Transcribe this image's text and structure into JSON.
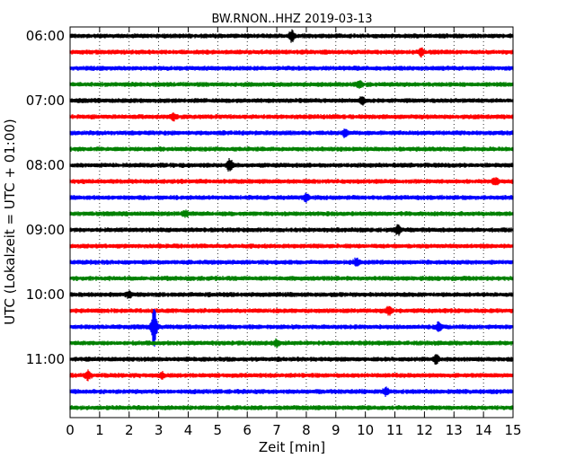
{
  "chart_data": {
    "type": "line",
    "title": "BW.RNON..HHZ 2019-03-13",
    "xlabel": "Zeit  [min]",
    "ylabel": "UTC (Lokalzeit = UTC + 01:00)",
    "xlim": [
      0,
      15
    ],
    "x_ticks": [
      "0",
      "1",
      "2",
      "3",
      "4",
      "5",
      "6",
      "7",
      "8",
      "9",
      "10",
      "11",
      "12",
      "13",
      "14",
      "15"
    ],
    "y_tick_labels": [
      "06:00",
      "07:00",
      "08:00",
      "09:00",
      "10:00",
      "11:00"
    ],
    "grid": "vertical-dotted",
    "trace_colors": [
      "#000000",
      "#ff0000",
      "#0000ff",
      "#008000"
    ],
    "traces": [
      {
        "start": "06:00",
        "events": [
          {
            "t": 7.5,
            "amp": 1.6
          }
        ]
      },
      {
        "start": "06:15",
        "events": [
          {
            "t": 11.9,
            "amp": 1.2
          }
        ]
      },
      {
        "start": "06:30",
        "events": []
      },
      {
        "start": "06:45",
        "events": [
          {
            "t": 9.8,
            "amp": 1.2
          }
        ]
      },
      {
        "start": "07:00",
        "events": [
          {
            "t": 9.9,
            "amp": 1.3
          }
        ]
      },
      {
        "start": "07:15",
        "events": [
          {
            "t": 3.5,
            "amp": 1.2
          }
        ]
      },
      {
        "start": "07:30",
        "events": [
          {
            "t": 9.3,
            "amp": 1.3
          }
        ]
      },
      {
        "start": "07:45",
        "events": []
      },
      {
        "start": "08:00",
        "events": [
          {
            "t": 5.4,
            "amp": 1.9
          }
        ]
      },
      {
        "start": "08:15",
        "events": [
          {
            "t": 14.4,
            "amp": 1.2
          }
        ]
      },
      {
        "start": "08:30",
        "events": [
          {
            "t": 8.0,
            "amp": 1.2
          }
        ]
      },
      {
        "start": "08:45",
        "events": [
          {
            "t": 3.9,
            "amp": 1.1
          }
        ]
      },
      {
        "start": "09:00",
        "events": [
          {
            "t": 11.1,
            "amp": 1.5
          }
        ]
      },
      {
        "start": "09:15",
        "events": []
      },
      {
        "start": "09:30",
        "events": [
          {
            "t": 9.7,
            "amp": 1.2
          }
        ]
      },
      {
        "start": "09:45",
        "events": []
      },
      {
        "start": "10:00",
        "events": [
          {
            "t": 2.0,
            "amp": 1.1
          }
        ]
      },
      {
        "start": "10:15",
        "events": [
          {
            "t": 10.8,
            "amp": 1.4
          }
        ]
      },
      {
        "start": "10:30",
        "events": [
          {
            "t": 2.85,
            "amp": 4.8
          },
          {
            "t": 12.5,
            "amp": 1.5
          }
        ]
      },
      {
        "start": "10:45",
        "events": [
          {
            "t": 7.0,
            "amp": 1.1
          }
        ]
      },
      {
        "start": "11:00",
        "events": [
          {
            "t": 12.4,
            "amp": 1.4
          }
        ]
      },
      {
        "start": "11:15",
        "events": [
          {
            "t": 0.6,
            "amp": 1.4
          },
          {
            "t": 3.1,
            "amp": 1.1
          }
        ]
      },
      {
        "start": "11:30",
        "events": [
          {
            "t": 10.7,
            "amp": 1.3
          }
        ]
      },
      {
        "start": "11:45",
        "events": []
      }
    ]
  }
}
